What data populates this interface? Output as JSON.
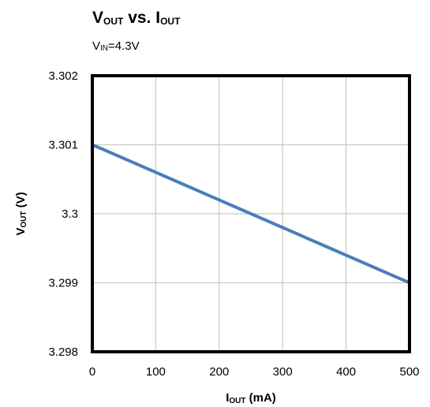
{
  "chart_data": {
    "type": "line",
    "title": {
      "main": "V",
      "sub1": "OUT",
      "mid": " vs. I",
      "sub2": "OUT"
    },
    "subtitle": {
      "main": "V",
      "sub": "IN",
      "rest": "=4.3V"
    },
    "xlabel": {
      "main": "I",
      "sub": "OUT",
      "rest": " (mA)"
    },
    "ylabel": {
      "main": "V",
      "sub": "OUT",
      "rest": " (V)"
    },
    "xlim": [
      0,
      500
    ],
    "ylim": [
      3.298,
      3.302
    ],
    "x_ticks": [
      "0",
      "100",
      "200",
      "300",
      "400",
      "500"
    ],
    "y_ticks": [
      "3.298",
      "3.299",
      "3.3",
      "3.301",
      "3.302"
    ],
    "grid": true,
    "series": [
      {
        "x": [
          0,
          500
        ],
        "y": [
          3.301,
          3.299
        ],
        "color": "#4a7ebb"
      }
    ]
  }
}
